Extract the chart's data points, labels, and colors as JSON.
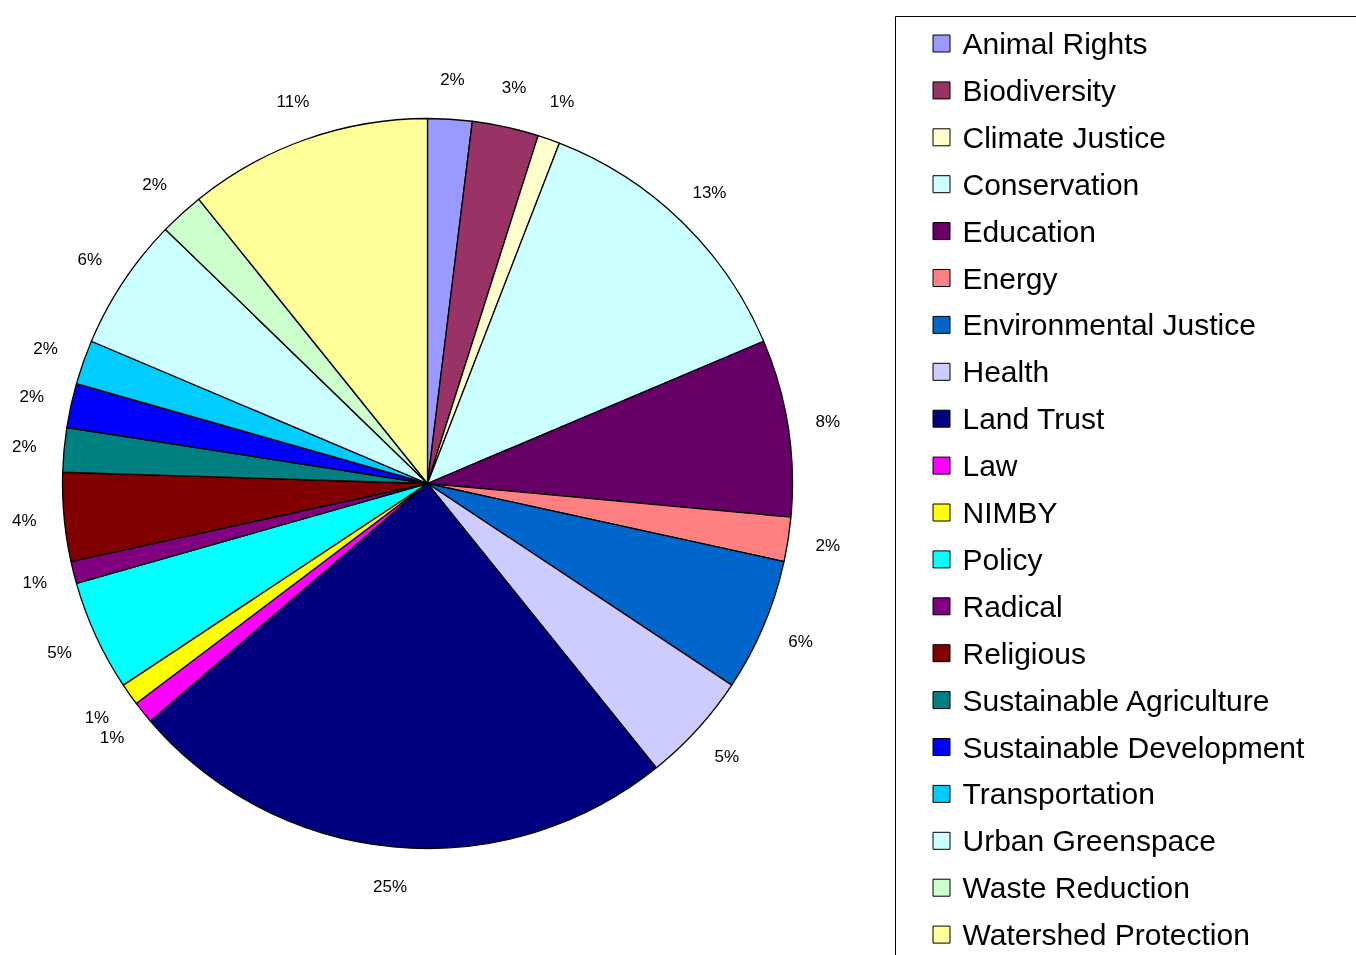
{
  "chart_data": {
    "type": "pie",
    "categories": [
      "Animal Rights",
      "Biodiversity",
      "Climate Justice",
      "Conservation",
      "Education",
      "Energy",
      "Environmental Justice",
      "Health",
      "Land Trust",
      "Law",
      "NIMBY",
      "Policy",
      "Radical",
      "Religious",
      "Sustainable Agriculture",
      "Sustainable Development",
      "Transportation",
      "Urban Greenspace",
      "Waste Reduction",
      "Watershed Protection"
    ],
    "values": [
      2,
      3,
      1,
      13,
      8,
      2,
      6,
      5,
      25,
      1,
      1,
      5,
      1,
      4,
      2,
      2,
      2,
      6,
      2,
      11
    ],
    "value_labels": [
      "2%",
      "3%",
      "1%",
      "13%",
      "8%",
      "2%",
      "6%",
      "5%",
      "25%",
      "1%",
      "1%",
      "5%",
      "1%",
      "4%",
      "2%",
      "2%",
      "2%",
      "6%",
      "2%",
      "11%"
    ],
    "colors": [
      "#9999ff",
      "#993366",
      "#ffffcc",
      "#ccffff",
      "#660066",
      "#ff8080",
      "#0066cc",
      "#ccccff",
      "#000080",
      "#ff00ff",
      "#ffff00",
      "#00ffff",
      "#800080",
      "#800000",
      "#008080",
      "#0000ff",
      "#00ccff",
      "#ccffff",
      "#ccffcc",
      "#ffff99"
    ],
    "legend": "right"
  }
}
